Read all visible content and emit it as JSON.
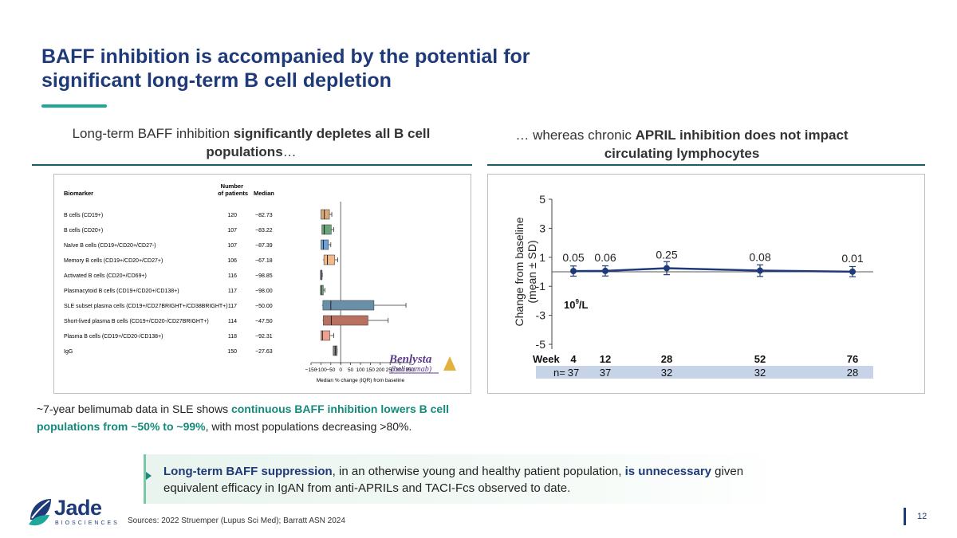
{
  "title_line1": "BAFF inhibition is accompanied by the potential for",
  "title_line2": "significant long-term B cell depletion",
  "left_subtitle": {
    "pre": "Long-term BAFF inhibition ",
    "bold": "significantly depletes all B cell populations",
    "post": "…"
  },
  "right_subtitle": {
    "pre": "… whereas chronic ",
    "bold": "APRIL inhibition does not impact circulating lymphocytes"
  },
  "logo_benlysta": {
    "brand": "Benlysta",
    "generic": "(belimumab)"
  },
  "colors": {
    "title": "#1f3a78",
    "accent": "#1fa79a",
    "line": "#1f3a78",
    "nrow": "#c7d3e6"
  },
  "chart_data": [
    {
      "type": "table",
      "headers": {
        "biomarker": "Biomarker",
        "patients_l1": "Number",
        "patients_l2": "of patients",
        "median": "Median"
      },
      "rows": [
        {
          "biomarker": "B cells (CD19+)",
          "patients": "120",
          "median": "−82.73",
          "q1": -100,
          "med": -82.73,
          "q3": -57,
          "wlo": -100,
          "whi": -45,
          "color": "#d9a97a"
        },
        {
          "biomarker": "B cells (CD20+)",
          "patients": "107",
          "median": "−83.22",
          "q1": -95,
          "med": -83.22,
          "q3": -48,
          "wlo": -95,
          "whi": -35,
          "color": "#6aa57a"
        },
        {
          "biomarker": "Naïve B cells (CD19+/CD20+/CD27-)",
          "patients": "107",
          "median": "−87.39",
          "q1": -100,
          "med": -87.39,
          "q3": -62,
          "wlo": -100,
          "whi": -50,
          "color": "#6fa0d6"
        },
        {
          "biomarker": "Memory B cells (CD19+/CD20+/CD27+)",
          "patients": "106",
          "median": "−67.18",
          "q1": -85,
          "med": -67.18,
          "q3": -30,
          "wlo": -90,
          "whi": -15,
          "color": "#f2b98a"
        },
        {
          "biomarker": "Activated B cells (CD20+/CD69+)",
          "patients": "116",
          "median": "−98.85",
          "q1": -102,
          "med": -98.85,
          "q3": -95,
          "wlo": -102,
          "whi": -93,
          "color": "#b4a7d6"
        },
        {
          "biomarker": "Plasmacytoid B cells (CD19+/CD20+/CD138+)",
          "patients": "117",
          "median": "−98.00",
          "q1": -102,
          "med": -98.0,
          "q3": -88,
          "wlo": -102,
          "whi": -80,
          "color": "#6aa57a"
        },
        {
          "biomarker": "SLE subset plasma cells (CD19+/CD27BRIGHT+/CD38BRIGHT+)",
          "patients": "117",
          "median": "−50.00",
          "q1": -90,
          "med": -50.0,
          "q3": 168,
          "wlo": -95,
          "whi": 330,
          "color": "#6a8fa8"
        },
        {
          "biomarker": "Short-lived plasma B cells (CD19+/CD20-/CD27BRIGHT+)",
          "patients": "114",
          "median": "−47.50",
          "q1": -88,
          "med": -47.5,
          "q3": 138,
          "wlo": -92,
          "whi": 240,
          "color": "#b87060"
        },
        {
          "biomarker": "Plasma B cells (CD19+/CD20-/CD138+)",
          "patients": "118",
          "median": "−92.31",
          "q1": -100,
          "med": -92.31,
          "q3": -55,
          "wlo": -100,
          "whi": -35,
          "color": "#f0a090"
        },
        {
          "biomarker": "IgG",
          "patients": "150",
          "median": "−27.63",
          "q1": -38,
          "med": -27.63,
          "q3": -18,
          "wlo": -38,
          "whi": -18,
          "color": "#808080"
        }
      ],
      "xticks": [
        -150,
        -100,
        -50,
        0,
        50,
        100,
        150,
        200,
        250,
        300,
        350
      ],
      "xtick_labels": [
        "−150",
        "−100",
        "−50",
        "0",
        "50",
        "100",
        "150",
        "200",
        "250",
        "300",
        "350"
      ],
      "xlabel": "Median % change (IQR) from baseline",
      "xlim": [
        -150,
        350
      ]
    },
    {
      "type": "line",
      "x": [
        4,
        12,
        28,
        52,
        76
      ],
      "y": [
        0.05,
        0.06,
        0.25,
        0.08,
        0.01
      ],
      "err": [
        0.35,
        0.35,
        0.45,
        0.4,
        0.35
      ],
      "labels": [
        "0.05",
        "0.06",
        "0.25",
        "0.08",
        "0.01"
      ],
      "ylabel_line1": "Change from baseline",
      "ylabel_line2": "(mean ± SD)",
      "unit_label": "10",
      "unit_sup": "9",
      "unit_suffix": "/L",
      "yticks": [
        5,
        3,
        1,
        -1,
        -3,
        -5
      ],
      "ylim": [
        -5,
        5
      ],
      "week_label": "Week",
      "n_label": "n=",
      "n": [
        "37",
        "37",
        "32",
        "32",
        "28"
      ]
    }
  ],
  "caption": {
    "pre": "~7-year belimumab data in SLE shows ",
    "hl": "continuous BAFF inhibition lowers B cell populations from ~50% to ~99%",
    "post": ", with most populations decreasing >80%."
  },
  "callout": {
    "b1": "Long-term BAFF suppression",
    "t1": ", in an otherwise young and healthy patient population, ",
    "b2": "is unnecessary",
    "t2": " given equivalent efficacy in IgAN from anti-APRILs and TACI-Fcs observed to date."
  },
  "logo": {
    "name": "Jade",
    "sub": "BIOSCIENCES"
  },
  "sources": "Sources: 2022 Struemper (Lupus Sci Med); Barratt ASN 2024",
  "page_number": "12"
}
